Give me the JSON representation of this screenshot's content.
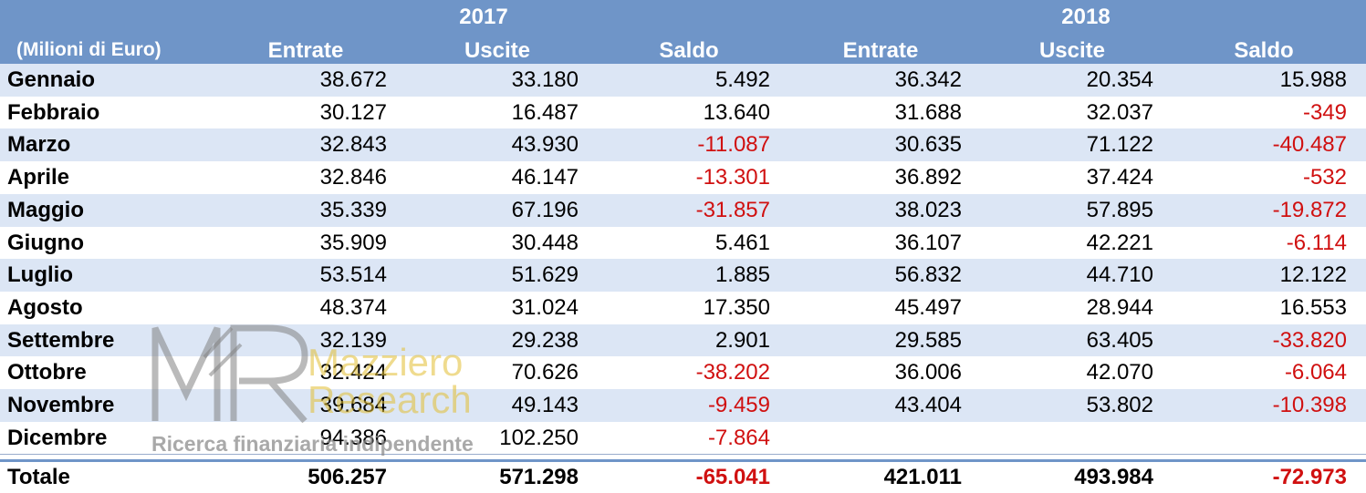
{
  "header": {
    "unit_label": "(Milioni di Euro)",
    "years": [
      "2017",
      "2018"
    ],
    "columns": [
      "Entrate",
      "Uscite",
      "Saldo",
      "Entrate",
      "Uscite",
      "Saldo"
    ]
  },
  "rows": [
    {
      "month": "Gennaio",
      "values": [
        "38.672",
        "33.180",
        "5.492",
        "36.342",
        "20.354",
        "15.988"
      ]
    },
    {
      "month": "Febbraio",
      "values": [
        "30.127",
        "16.487",
        "13.640",
        "31.688",
        "32.037",
        "-349"
      ]
    },
    {
      "month": "Marzo",
      "values": [
        "32.843",
        "43.930",
        "-11.087",
        "30.635",
        "71.122",
        "-40.487"
      ]
    },
    {
      "month": "Aprile",
      "values": [
        "32.846",
        "46.147",
        "-13.301",
        "36.892",
        "37.424",
        "-532"
      ]
    },
    {
      "month": "Maggio",
      "values": [
        "35.339",
        "67.196",
        "-31.857",
        "38.023",
        "57.895",
        "-19.872"
      ]
    },
    {
      "month": "Giugno",
      "values": [
        "35.909",
        "30.448",
        "5.461",
        "36.107",
        "42.221",
        "-6.114"
      ]
    },
    {
      "month": "Luglio",
      "values": [
        "53.514",
        "51.629",
        "1.885",
        "56.832",
        "44.710",
        "12.122"
      ]
    },
    {
      "month": "Agosto",
      "values": [
        "48.374",
        "31.024",
        "17.350",
        "45.497",
        "28.944",
        "16.553"
      ]
    },
    {
      "month": "Settembre",
      "values": [
        "32.139",
        "29.238",
        "2.901",
        "29.585",
        "63.405",
        "-33.820"
      ]
    },
    {
      "month": "Ottobre",
      "values": [
        "32.424",
        "70.626",
        "-38.202",
        "36.006",
        "42.070",
        "-6.064"
      ]
    },
    {
      "month": "Novembre",
      "values": [
        "39.684",
        "49.143",
        "-9.459",
        "43.404",
        "53.802",
        "-10.398"
      ]
    },
    {
      "month": "Dicembre",
      "values": [
        "94.386",
        "102.250",
        "-7.864",
        "",
        "",
        ""
      ]
    }
  ],
  "total": {
    "label": "Totale",
    "values": [
      "506.257",
      "571.298",
      "-65.041",
      "421.011",
      "493.984",
      "-72.973"
    ]
  },
  "watermark": {
    "logo_letters": "MR",
    "name_line1": "Mazziero",
    "name_line2": "Research",
    "tagline": "Ricerca finanziaria indipendente"
  },
  "colors": {
    "header_bg": "#6f95c8",
    "stripe_bg": "#dce6f5",
    "negative": "#d01010",
    "text": "#000000"
  }
}
